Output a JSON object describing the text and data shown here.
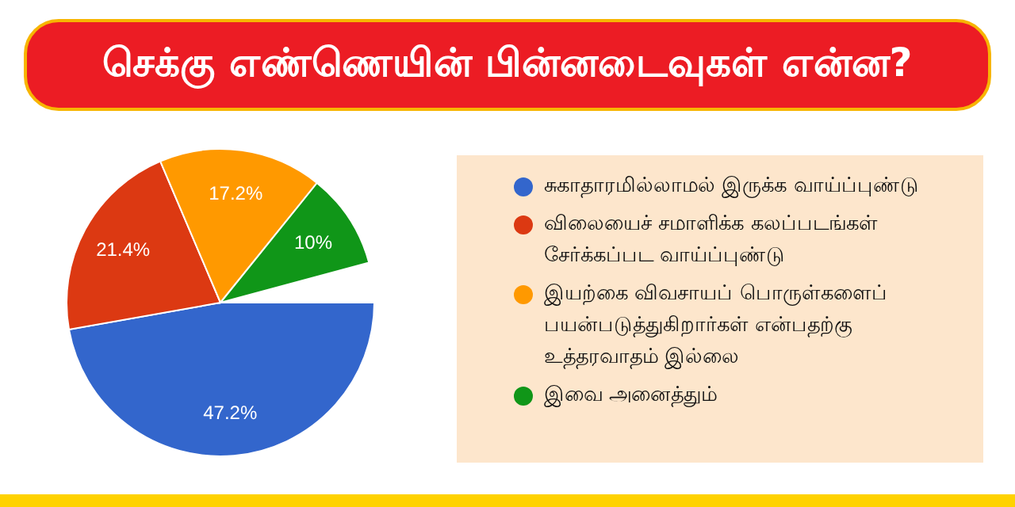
{
  "chart_data": {
    "type": "pie",
    "title": "செக்கு எண்ணெயின் பின்னடைவுகள் என்ன?",
    "categories": [
      "சுகாதாரமில்லாமல் இருக்க வாய்ப்புண்டு",
      "விலையைச் சமாளிக்க கலப்படங்கள் சேர்க்கப்பட வாய்ப்புண்டு",
      "இயற்கை விவசாயப் பொருள்களைப் பயன்படுத்துகிறார்கள் என்பதற்கு உத்தரவாதம் இல்லை",
      "இவை அனைத்தும்"
    ],
    "values": [
      47.2,
      21.4,
      17.2,
      10
    ],
    "colors": [
      "#3366cc",
      "#dc3912",
      "#ff9900",
      "#109618"
    ],
    "value_labels": [
      "47.2%",
      "21.4%",
      "17.2%",
      "10%"
    ],
    "legend": "right"
  }
}
